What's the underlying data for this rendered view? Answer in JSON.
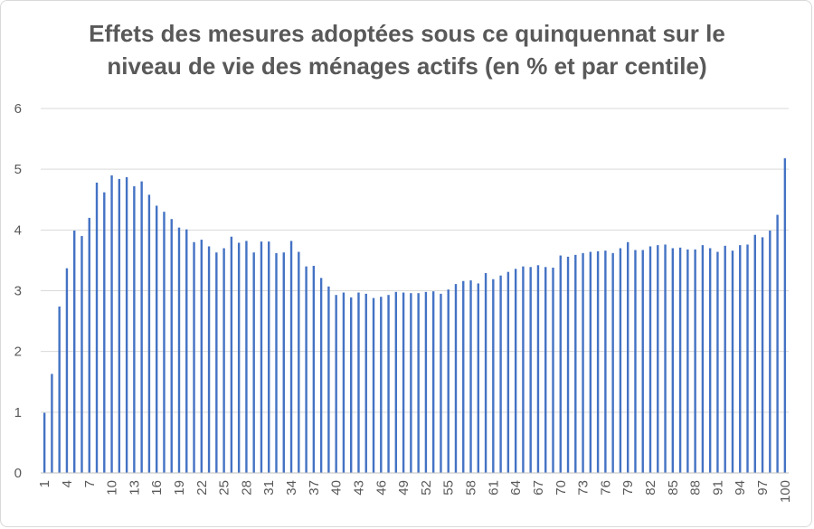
{
  "chart_data": {
    "type": "bar",
    "title_lines": [
      "Effets des mesures adoptées sous ce quinquennat sur le",
      "niveau de vie des ménages actifs (en % et par centile)"
    ],
    "xlabel": "",
    "ylabel": "",
    "ylim": [
      0,
      6
    ],
    "yticks": [
      0,
      1,
      2,
      3,
      4,
      5,
      6
    ],
    "xtick_labels": [
      "1",
      "4",
      "7",
      "10",
      "13",
      "16",
      "19",
      "22",
      "25",
      "28",
      "31",
      "34",
      "37",
      "40",
      "43",
      "46",
      "49",
      "52",
      "55",
      "58",
      "61",
      "64",
      "67",
      "70",
      "73",
      "76",
      "79",
      "82",
      "85",
      "88",
      "91",
      "94",
      "97",
      "100"
    ],
    "grid": true,
    "legend": "none",
    "bar_color": "#4472c4",
    "categories": [
      1,
      2,
      3,
      4,
      5,
      6,
      7,
      8,
      9,
      10,
      11,
      12,
      13,
      14,
      15,
      16,
      17,
      18,
      19,
      20,
      21,
      22,
      23,
      24,
      25,
      26,
      27,
      28,
      29,
      30,
      31,
      32,
      33,
      34,
      35,
      36,
      37,
      38,
      39,
      40,
      41,
      42,
      43,
      44,
      45,
      46,
      47,
      48,
      49,
      50,
      51,
      52,
      53,
      54,
      55,
      56,
      57,
      58,
      59,
      60,
      61,
      62,
      63,
      64,
      65,
      66,
      67,
      68,
      69,
      70,
      71,
      72,
      73,
      74,
      75,
      76,
      77,
      78,
      79,
      80,
      81,
      82,
      83,
      84,
      85,
      86,
      87,
      88,
      89,
      90,
      91,
      92,
      93,
      94,
      95,
      96,
      97,
      98,
      99,
      100
    ],
    "values": [
      0.99,
      1.63,
      2.74,
      3.37,
      3.99,
      3.9,
      4.2,
      4.78,
      4.62,
      4.9,
      4.84,
      4.87,
      4.72,
      4.8,
      4.58,
      4.4,
      4.3,
      4.18,
      4.04,
      4.01,
      3.8,
      3.84,
      3.73,
      3.63,
      3.7,
      3.89,
      3.79,
      3.82,
      3.63,
      3.81,
      3.81,
      3.62,
      3.63,
      3.82,
      3.64,
      3.4,
      3.41,
      3.21,
      3.07,
      2.93,
      2.97,
      2.89,
      2.97,
      2.95,
      2.88,
      2.9,
      2.93,
      2.98,
      2.97,
      2.96,
      2.96,
      2.98,
      2.99,
      2.95,
      3.02,
      3.11,
      3.16,
      3.17,
      3.12,
      3.29,
      3.19,
      3.25,
      3.31,
      3.36,
      3.4,
      3.39,
      3.42,
      3.39,
      3.38,
      3.58,
      3.56,
      3.59,
      3.62,
      3.64,
      3.65,
      3.66,
      3.62,
      3.7,
      3.8,
      3.67,
      3.67,
      3.73,
      3.75,
      3.76,
      3.7,
      3.71,
      3.68,
      3.68,
      3.75,
      3.7,
      3.64,
      3.74,
      3.66,
      3.75,
      3.76,
      3.92,
      3.88,
      3.99,
      4.25,
      5.18
    ]
  }
}
